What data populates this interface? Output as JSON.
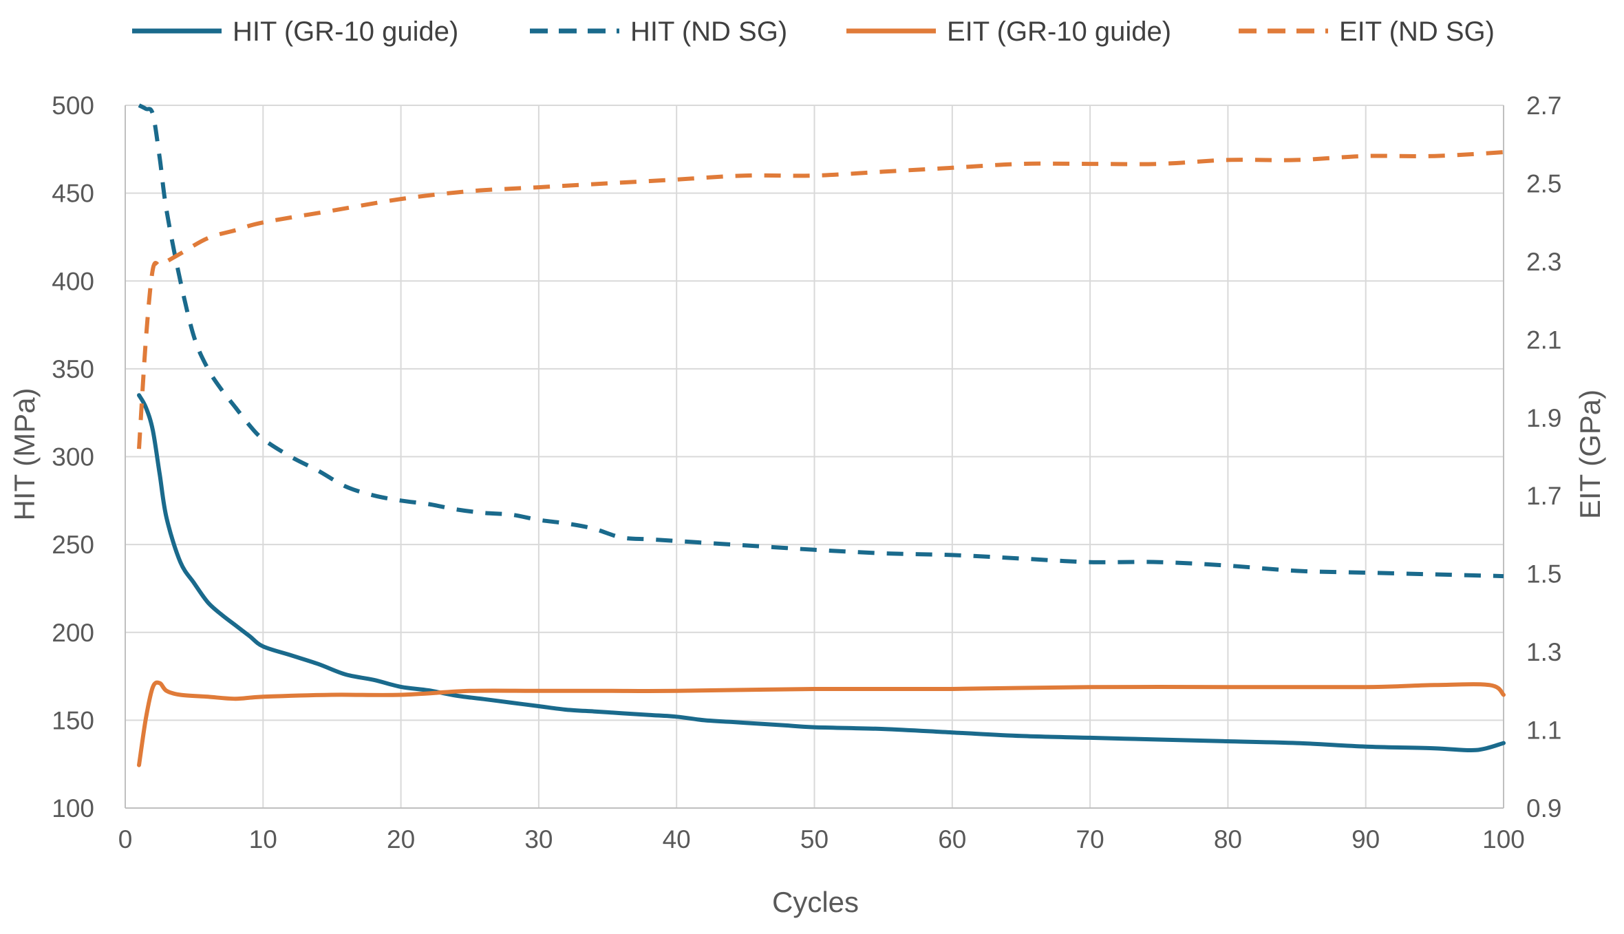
{
  "chart_data": {
    "type": "line",
    "title": "",
    "xlabel": "Cycles",
    "ylabel": "HIT (MPa)",
    "y2label": "EIT (GPa)",
    "xlim": [
      0,
      100
    ],
    "ylim": [
      100,
      500
    ],
    "y2lim": [
      0.9,
      2.7
    ],
    "x_ticks": [
      "0",
      "10",
      "20",
      "30",
      "40",
      "50",
      "60",
      "70",
      "80",
      "90",
      "100"
    ],
    "y_ticks": [
      "100",
      "150",
      "200",
      "250",
      "300",
      "350",
      "400",
      "450",
      "500"
    ],
    "y2_ticks": [
      "0.9",
      "1.1",
      "1.3",
      "1.5",
      "1.7",
      "1.9",
      "2.1",
      "2.3",
      "2.5",
      "2.7"
    ],
    "grid": true,
    "legend_position": "top",
    "colors": {
      "hit": "#1a6a8c",
      "eit": "#e07b39",
      "grid": "#d9d9d9",
      "axis": "#bfbfbf"
    },
    "series": [
      {
        "name": "HIT (GR-10 guide)",
        "axis": "left",
        "style": "solid",
        "color_key": "hit",
        "x": [
          1,
          1.5,
          2,
          2.5,
          3,
          4,
          5,
          6,
          7,
          8,
          9,
          10,
          12,
          14,
          16,
          18,
          20,
          22,
          24,
          26,
          28,
          30,
          32,
          34,
          36,
          38,
          40,
          42,
          44,
          46,
          48,
          50,
          55,
          60,
          65,
          70,
          75,
          80,
          85,
          90,
          95,
          98,
          100
        ],
        "values": [
          335,
          328,
          315,
          290,
          265,
          240,
          228,
          217,
          210,
          204,
          198,
          192,
          187,
          182,
          176,
          173,
          169,
          167,
          164,
          162,
          160,
          158,
          156,
          155,
          154,
          153,
          152,
          150,
          149,
          148,
          147,
          146,
          145,
          143,
          141,
          140,
          139,
          138,
          137,
          135,
          134,
          133,
          137
        ]
      },
      {
        "name": "HIT (ND SG)",
        "axis": "left",
        "style": "dashed",
        "color_key": "hit",
        "x": [
          1,
          1.5,
          2,
          2.5,
          3,
          4,
          5,
          6,
          7,
          8,
          9,
          10,
          12,
          14,
          16,
          18,
          20,
          22,
          24,
          26,
          28,
          30,
          32,
          34,
          36,
          38,
          40,
          42,
          44,
          46,
          48,
          50,
          55,
          60,
          65,
          70,
          75,
          80,
          85,
          90,
          95,
          100
        ],
        "values": [
          500,
          498,
          495,
          470,
          440,
          400,
          368,
          350,
          338,
          328,
          318,
          310,
          300,
          292,
          283,
          278,
          275,
          273,
          270,
          268,
          267,
          264,
          262,
          259,
          254,
          253,
          252,
          251,
          250,
          249,
          248,
          247,
          245,
          244,
          242,
          240,
          240,
          238,
          235,
          234,
          233,
          232
        ]
      },
      {
        "name": "EIT (GR-10 guide)",
        "axis": "right",
        "style": "solid",
        "color_key": "eit",
        "x": [
          1,
          1.5,
          2,
          2.5,
          3,
          4,
          6,
          8,
          10,
          15,
          20,
          25,
          30,
          35,
          40,
          50,
          60,
          70,
          80,
          90,
          95,
          99,
          100
        ],
        "values": [
          1.01,
          1.13,
          1.21,
          1.22,
          1.2,
          1.19,
          1.185,
          1.18,
          1.185,
          1.19,
          1.19,
          1.2,
          1.2,
          1.2,
          1.2,
          1.205,
          1.205,
          1.21,
          1.21,
          1.21,
          1.215,
          1.215,
          1.19
        ]
      },
      {
        "name": "EIT (ND SG)",
        "axis": "right",
        "style": "dashed",
        "color_key": "eit",
        "x": [
          1,
          1.5,
          2,
          2.5,
          3,
          4,
          6,
          8,
          10,
          15,
          20,
          25,
          30,
          35,
          40,
          45,
          50,
          55,
          60,
          65,
          70,
          75,
          80,
          85,
          90,
          95,
          100
        ],
        "values": [
          1.82,
          2.1,
          2.28,
          2.29,
          2.3,
          2.32,
          2.36,
          2.38,
          2.4,
          2.43,
          2.46,
          2.48,
          2.49,
          2.5,
          2.51,
          2.52,
          2.52,
          2.53,
          2.54,
          2.55,
          2.55,
          2.55,
          2.56,
          2.56,
          2.57,
          2.57,
          2.58
        ]
      }
    ]
  }
}
